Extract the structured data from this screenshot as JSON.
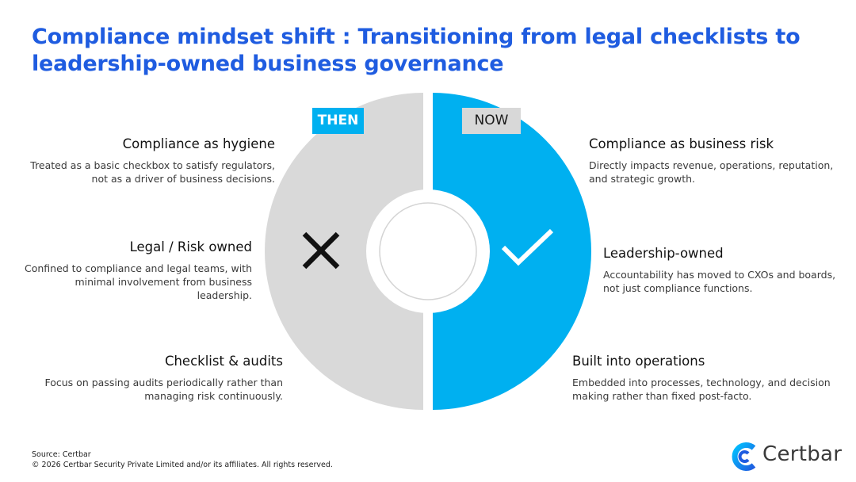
{
  "title": {
    "line1": "Compliance mindset shift : Transitioning from legal checklists to",
    "line2": "leadership-owned business governance"
  },
  "then": {
    "label": "THEN",
    "icon": "x-mark-icon",
    "items": [
      {
        "heading": "Compliance as hygiene",
        "desc1": "Treated as a basic checkbox to satisfy regulators,",
        "desc2": "not as a driver of business decisions.",
        "desc3": ""
      },
      {
        "heading": "Legal / Risk owned",
        "desc1": "Confined to compliance and legal teams, with",
        "desc2": "minimal involvement from business",
        "desc3": "leadership."
      },
      {
        "heading": "Checklist & audits",
        "desc1": "Focus on passing audits periodically rather than",
        "desc2": "managing risk continuously.",
        "desc3": ""
      }
    ]
  },
  "now": {
    "label": "NOW",
    "icon": "check-mark-icon",
    "items": [
      {
        "heading": "Compliance as business risk",
        "desc1": "Directly impacts revenue, operations, reputation,",
        "desc2": "and strategic growth."
      },
      {
        "heading": "Leadership-owned",
        "desc1": "Accountability has moved to CXOs and boards,",
        "desc2": "not just compliance functions."
      },
      {
        "heading": "Built into operations",
        "desc1": "Embedded into processes, technology, and decision",
        "desc2": "making rather than fixed post-facto."
      }
    ]
  },
  "colors": {
    "then_fill": "#d9d9d9",
    "now_fill": "#00b0f0",
    "title": "#1f5ce0"
  },
  "footer": {
    "source": "Source: Certbar",
    "copyright": "© 2026 Certbar Security Private Limited and/or its affiliates. All rights reserved."
  },
  "logo": {
    "text": "Certbar",
    "icon": "certbar-logo-icon"
  }
}
